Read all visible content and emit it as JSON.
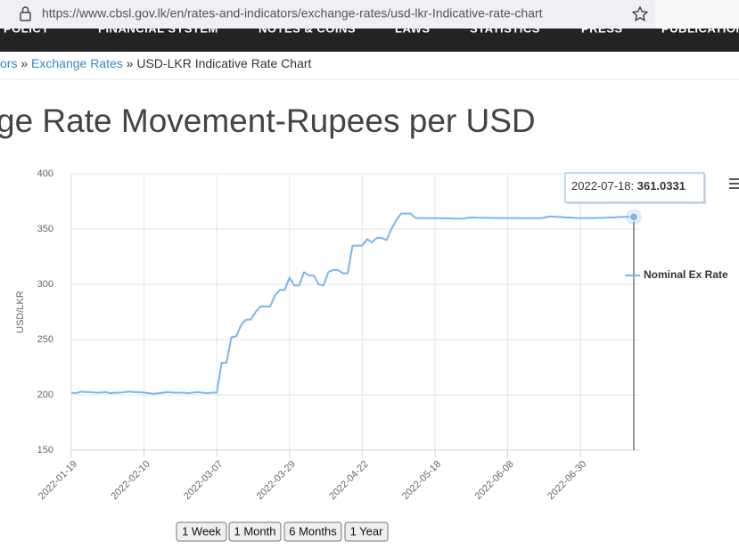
{
  "browser": {
    "url": "https://www.cbsl.gov.lk/en/rates-and-indicators/exchange-rates/usd-lkr-Indicative-rate-chart"
  },
  "nav": [
    "POLICY",
    "FINANCIAL SYSTEM",
    "NOTES & COINS",
    "LAWS",
    "STATISTICS",
    "PRESS",
    "PUBLICATIONS"
  ],
  "breadcrumb": {
    "separator": "»",
    "items": [
      "ors",
      "Exchange Rates",
      "USD-LKR Indicative Rate Chart"
    ]
  },
  "heading": "ge Rate Movement-Rupees per USD",
  "buttons": [
    "1 Week",
    "1 Month",
    "6 Months",
    "1 Year"
  ],
  "chart_data": {
    "type": "line",
    "ylabel": "USD/LKR",
    "ylim": [
      150,
      400
    ],
    "yticks": [
      150,
      200,
      250,
      300,
      350,
      400
    ],
    "grid": true,
    "legend": "right",
    "categories": [
      "2022-01-19",
      null,
      null,
      null,
      null,
      null,
      null,
      null,
      null,
      null,
      null,
      null,
      null,
      null,
      null,
      "2022-02-10",
      null,
      null,
      null,
      null,
      null,
      null,
      null,
      null,
      null,
      null,
      null,
      null,
      null,
      null,
      "2022-03-07",
      null,
      null,
      null,
      null,
      null,
      null,
      null,
      null,
      null,
      null,
      null,
      null,
      null,
      null,
      "2022-03-29",
      null,
      null,
      null,
      null,
      null,
      null,
      null,
      null,
      null,
      null,
      null,
      null,
      null,
      null,
      "2022-04-22",
      null,
      null,
      null,
      null,
      null,
      null,
      null,
      null,
      null,
      null,
      null,
      null,
      null,
      null,
      "2022-05-18",
      null,
      null,
      null,
      null,
      null,
      null,
      null,
      null,
      null,
      null,
      null,
      null,
      null,
      null,
      "2022-06-08",
      null,
      null,
      null,
      null,
      null,
      null,
      null,
      null,
      null,
      null,
      null,
      null,
      null,
      null,
      "2022-06-30",
      null,
      null,
      null,
      null,
      null,
      null,
      null,
      null,
      null,
      null,
      "2022-07-18"
    ],
    "series": [
      {
        "name": "Nominal Ex Rate",
        "color": "#7cb5ec",
        "values": [
          202,
          201.5,
          203,
          202.5,
          202.5,
          202,
          202,
          202.5,
          201.5,
          202,
          202,
          202.5,
          203,
          202.5,
          202.5,
          202,
          201.5,
          201,
          201.5,
          202,
          202.5,
          202,
          202,
          202,
          201.5,
          202,
          202.5,
          202,
          201.5,
          202,
          202,
          229,
          229,
          252,
          253,
          263,
          268,
          268,
          275,
          280,
          280,
          280,
          290,
          295,
          295,
          306,
          299,
          299,
          311,
          308,
          308,
          300,
          299,
          311,
          313,
          313,
          310,
          310,
          335,
          335,
          335,
          341,
          338,
          342,
          342,
          340,
          350,
          358,
          364,
          364,
          364,
          360,
          360,
          359.9,
          359.9,
          359.9,
          359.9,
          359.8,
          359.8,
          359.5,
          359.5,
          359.6,
          360.5,
          360.5,
          360.2,
          360.3,
          360.2,
          360.1,
          360,
          360,
          360,
          360,
          360,
          359.8,
          359.9,
          359.9,
          359.9,
          359.9,
          361,
          361.5,
          361,
          361,
          360.5,
          360.5,
          360,
          360,
          360,
          360,
          360,
          360.2,
          360.2,
          360.6,
          360.6,
          361,
          361,
          361.2,
          361.0331
        ]
      }
    ]
  }
}
